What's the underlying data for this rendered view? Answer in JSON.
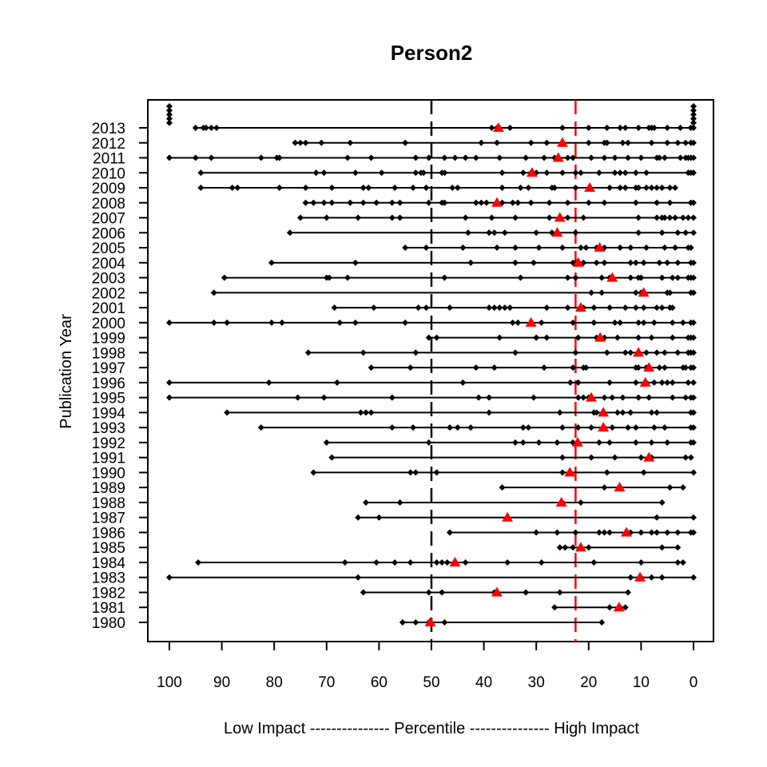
{
  "chart_data": {
    "type": "scatter",
    "title": "Person2",
    "ylabel": "Publication Year",
    "xlabel": "Low Impact --------------- Percentile --------------- High Impact",
    "x_direction": "reversed",
    "xlim": [
      100,
      0
    ],
    "x_ticks": [
      100,
      90,
      80,
      70,
      60,
      50,
      40,
      30,
      20,
      10,
      0
    ],
    "years": [
      1980,
      1981,
      1982,
      1983,
      1984,
      1985,
      1986,
      1987,
      1988,
      1989,
      1990,
      1991,
      1992,
      1993,
      1994,
      1995,
      1996,
      1997,
      1998,
      1999,
      2000,
      2001,
      2002,
      2003,
      2004,
      2005,
      2006,
      2007,
      2008,
      2009,
      2010,
      2011,
      2012,
      2013
    ],
    "reference_lines": [
      {
        "x": 50,
        "style": "dashed",
        "color": "#000000"
      },
      {
        "x": 22.5,
        "style": "dashed",
        "color": "#ff0000"
      }
    ],
    "points_color": "#000000",
    "median_marker_color": "#ff0000",
    "rows": [
      {
        "year": 1980,
        "points": [
          55.5,
          53,
          50.5,
          47.5,
          17.5
        ],
        "median": 50.2
      },
      {
        "year": 1981,
        "points": [
          26.5,
          16,
          14,
          13
        ],
        "median": 14.2
      },
      {
        "year": 1982,
        "points": [
          63,
          50.5,
          48,
          38,
          32,
          25.5,
          12.5
        ],
        "median": 37.5
      },
      {
        "year": 1983,
        "points": [
          100,
          64,
          12,
          10,
          8,
          6,
          0
        ],
        "median": 10.2
      },
      {
        "year": 1984,
        "points": [
          94.5,
          66.5,
          60.5,
          57,
          54,
          49,
          48,
          47,
          43.5,
          35.5,
          29,
          19,
          10,
          3,
          2
        ],
        "median": 45.5
      },
      {
        "year": 1985,
        "points": [
          25.5,
          24.5,
          23,
          20,
          6,
          3
        ],
        "median": 21.5
      },
      {
        "year": 1986,
        "points": [
          46.5,
          30,
          26,
          22.5,
          18,
          17,
          16,
          12,
          10,
          8,
          7,
          5,
          3,
          0.5,
          0
        ],
        "median": 12.8
      },
      {
        "year": 1987,
        "points": [
          64,
          60,
          35.5,
          7,
          0
        ],
        "median": 35.5
      },
      {
        "year": 1988,
        "points": [
          62.5,
          56,
          25,
          21.5,
          6
        ],
        "median": 25.2
      },
      {
        "year": 1989,
        "points": [
          36.5,
          17,
          14,
          4.5,
          2
        ],
        "median": 14.1
      },
      {
        "year": 1990,
        "points": [
          72.5,
          54,
          53,
          49,
          25,
          23.5,
          16.5,
          9.5,
          0
        ],
        "median": 23.6
      },
      {
        "year": 1991,
        "points": [
          69,
          25,
          19.5,
          15,
          10,
          8.5,
          8,
          1.5,
          0.5
        ],
        "median": 8.5
      },
      {
        "year": 1992,
        "points": [
          70,
          50.5,
          34,
          32.5,
          29.5,
          26,
          23,
          22,
          18,
          16,
          11,
          8,
          5,
          0.5,
          0
        ],
        "median": 22.1
      },
      {
        "year": 1993,
        "points": [
          82.5,
          57.5,
          53.5,
          46.5,
          45,
          42.5,
          32.5,
          31.5,
          25,
          22,
          19.5,
          17,
          15.5,
          12.5,
          11,
          7.5,
          5.5,
          0.5,
          0
        ],
        "median": 17.2
      },
      {
        "year": 1994,
        "points": [
          89,
          63.5,
          62.5,
          61.5,
          39,
          25.5,
          19,
          18.5,
          14.5,
          13.5,
          12,
          8,
          7,
          0.5,
          0
        ],
        "median": 17.2
      },
      {
        "year": 1995,
        "points": [
          100,
          75.5,
          70.5,
          57.5,
          41,
          39,
          30.5,
          22,
          21,
          20,
          17,
          15.5,
          13.5,
          10.5,
          8.5,
          4,
          1.5,
          0.5,
          0
        ],
        "median": 19.5
      },
      {
        "year": 1996,
        "points": [
          100,
          81,
          68,
          44,
          23.5,
          22,
          16,
          11,
          9,
          7.5,
          6,
          5,
          4,
          1,
          0
        ],
        "median": 9.2
      },
      {
        "year": 1997,
        "points": [
          61.5,
          54,
          41.5,
          38,
          28.5,
          23,
          21,
          20.5,
          11,
          10.5,
          9,
          6.5,
          5.5,
          2,
          1.5,
          0.5,
          0
        ],
        "median": 8.5
      },
      {
        "year": 1998,
        "points": [
          73.5,
          63,
          53,
          34,
          22.5,
          16.5,
          13,
          12,
          10.5,
          9,
          7,
          5.5,
          3,
          1,
          0.5,
          0
        ],
        "median": 10.5
      },
      {
        "year": 1999,
        "points": [
          50.5,
          49,
          37,
          30,
          28,
          22,
          18.5,
          17,
          14.5,
          10.5,
          8,
          4,
          1,
          0.5,
          0
        ],
        "median": 17.8
      },
      {
        "year": 2000,
        "points": [
          100,
          91.5,
          89,
          80.5,
          78.5,
          67.5,
          64.5,
          55,
          34.5,
          33.5,
          29,
          23,
          19,
          15,
          14,
          10.5,
          9.5,
          7.5,
          4,
          2,
          0.5,
          0
        ],
        "median": 31.0
      },
      {
        "year": 2001,
        "points": [
          68.5,
          61,
          52.5,
          51,
          46.5,
          39,
          38,
          37,
          36,
          35,
          28,
          24,
          21,
          19,
          16,
          13,
          11,
          9.5,
          7,
          6,
          4.5,
          4
        ],
        "median": 21.5
      },
      {
        "year": 2002,
        "points": [
          91.5,
          19.5,
          17.5,
          11,
          10,
          5,
          4.5,
          0.5,
          0
        ],
        "median": 9.5
      },
      {
        "year": 2003,
        "points": [
          89.5,
          70,
          69.5,
          66,
          47.5,
          33,
          24,
          22.5,
          17.5,
          16,
          12,
          10.5,
          10,
          6,
          4,
          3,
          1,
          0.5,
          0
        ],
        "median": 15.5
      },
      {
        "year": 2004,
        "points": [
          80.5,
          64.5,
          42.5,
          34,
          30.5,
          23,
          22.5,
          21,
          18.5,
          17,
          12,
          11,
          9.5,
          6.5,
          5,
          3,
          0.5,
          0
        ],
        "median": 22.0
      },
      {
        "year": 2005,
        "points": [
          55,
          51,
          44,
          37.5,
          34,
          29.5,
          25,
          21.5,
          20.5,
          18.5,
          17,
          14,
          12,
          9,
          5.5,
          3.5,
          1,
          0.5
        ],
        "median": 17.9
      },
      {
        "year": 2006,
        "points": [
          77,
          43,
          39,
          38,
          36,
          30,
          27,
          22.5,
          10.5,
          6,
          3,
          1.5,
          0
        ],
        "median": 26.0
      },
      {
        "year": 2007,
        "points": [
          75,
          70,
          64,
          57.5,
          56,
          43.5,
          38.5,
          34,
          27.5,
          24,
          21,
          10.5,
          7,
          6,
          5.5,
          4.5,
          3.5,
          2,
          1,
          0
        ],
        "median": 25.5
      },
      {
        "year": 2008,
        "points": [
          74,
          72.5,
          70.5,
          69,
          65.5,
          63,
          60.5,
          57.5,
          56,
          50.5,
          48,
          47.5,
          41.5,
          40.5,
          39.5,
          36.5,
          34.5,
          33.5,
          31,
          27.5,
          24,
          20,
          17,
          11,
          7,
          4.5,
          0.5,
          0
        ],
        "median": 37.5
      },
      {
        "year": 2009,
        "points": [
          94,
          88,
          87,
          79,
          74,
          69,
          63,
          62,
          57,
          53.5,
          51,
          46,
          45,
          36.5,
          33,
          31.5,
          27,
          26.5,
          22.5,
          16,
          14,
          13,
          11,
          10.5,
          9,
          8,
          7,
          6,
          4.5,
          3.5
        ],
        "median": 19.8
      },
      {
        "year": 2010,
        "points": [
          94,
          72,
          70.5,
          64.5,
          59.5,
          53,
          52,
          51.5,
          48,
          47.5,
          36.5,
          32.5,
          31,
          30,
          28,
          25,
          22.5,
          21.5,
          18,
          15,
          14,
          13,
          11,
          9,
          1,
          0.5,
          0
        ],
        "median": 30.8
      },
      {
        "year": 2011,
        "points": [
          100,
          95,
          92,
          82.5,
          79.5,
          79,
          66,
          61.5,
          53,
          50.5,
          47.5,
          45.5,
          43.5,
          41.5,
          37,
          32,
          28.5,
          26.5,
          24,
          23,
          19.5,
          17,
          15,
          12.5,
          10,
          7,
          6.5,
          5.5,
          2.5,
          1.5,
          1,
          0.5,
          0
        ],
        "median": 25.8
      },
      {
        "year": 2012,
        "points": [
          76,
          75,
          74,
          71,
          65.5,
          55,
          40.5,
          37.5,
          31,
          28,
          25,
          20,
          17,
          16.5,
          13.5,
          12.5,
          8,
          5,
          3,
          1.5,
          0.5,
          0
        ],
        "median": 25.0
      },
      {
        "year": 2013,
        "points": [
          95,
          93.5,
          93,
          92,
          91,
          38.5,
          37.5,
          35,
          25,
          20,
          16.5,
          14,
          13,
          10.5,
          8.5,
          8,
          7.5,
          5,
          2.5,
          0.5,
          0
        ],
        "median": 37.2
      }
    ],
    "overflow_stacks": [
      {
        "x": 100,
        "count": 5
      },
      {
        "x": 0,
        "count": 5
      }
    ]
  }
}
